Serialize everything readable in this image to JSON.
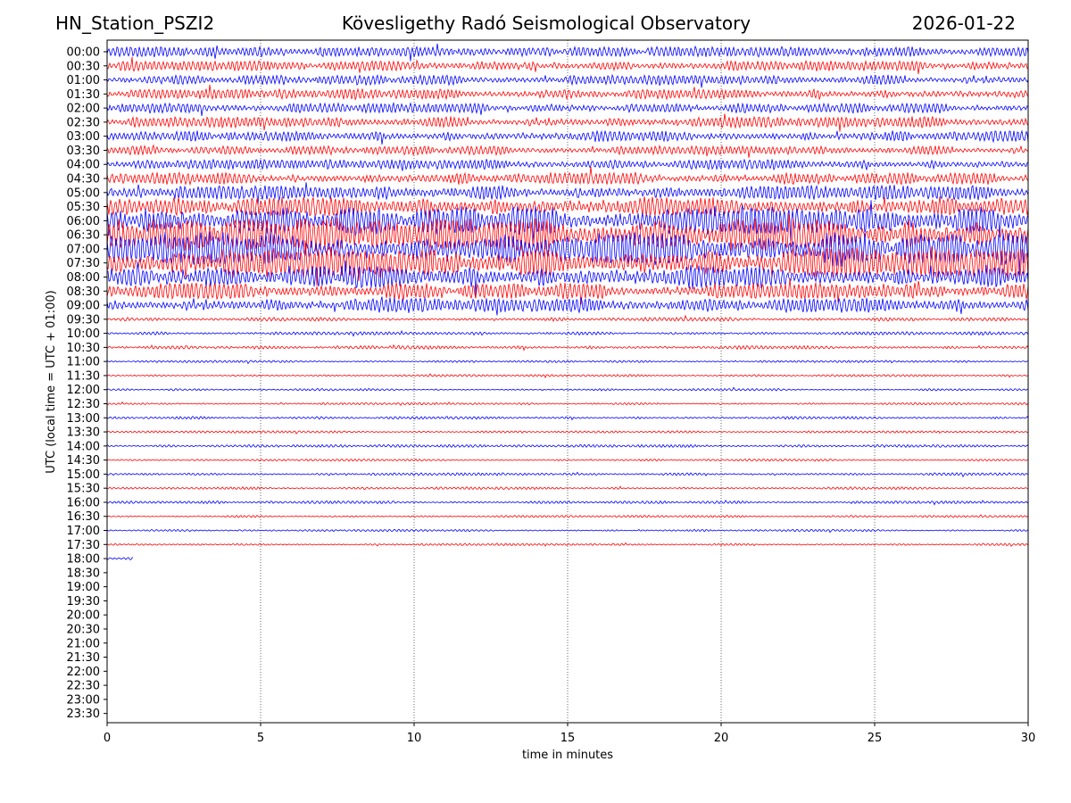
{
  "header": {
    "station": "HN_Station_PSZI2",
    "observatory": "Kövesligethy Radó Seismological Observatory",
    "date": "2026-01-22"
  },
  "chart_data": {
    "type": "line",
    "title": "Kövesligethy Radó Seismological Observatory",
    "xlabel": "time in minutes",
    "ylabel": "UTC (local time = UTC + 01:00)",
    "xlim": [
      0,
      30
    ],
    "xticks": [
      0,
      5,
      10,
      15,
      20,
      25,
      30
    ],
    "grid": "vertical dotted lines at x ticks",
    "colors": {
      "odd_rows": "#0000ff",
      "even_rows": "#ff0000"
    },
    "rows": [
      {
        "label": "00:00",
        "color": "#0000ff",
        "amplitude": 0.55,
        "duration_min": 30
      },
      {
        "label": "00:30",
        "color": "#ff0000",
        "amplitude": 0.55,
        "duration_min": 30
      },
      {
        "label": "01:00",
        "color": "#0000ff",
        "amplitude": 0.55,
        "duration_min": 30
      },
      {
        "label": "01:30",
        "color": "#ff0000",
        "amplitude": 0.55,
        "duration_min": 30
      },
      {
        "label": "02:00",
        "color": "#0000ff",
        "amplitude": 0.55,
        "duration_min": 30
      },
      {
        "label": "02:30",
        "color": "#ff0000",
        "amplitude": 0.6,
        "duration_min": 30
      },
      {
        "label": "03:00",
        "color": "#0000ff",
        "amplitude": 0.6,
        "duration_min": 30
      },
      {
        "label": "03:30",
        "color": "#ff0000",
        "amplitude": 0.5,
        "duration_min": 30
      },
      {
        "label": "04:00",
        "color": "#0000ff",
        "amplitude": 0.55,
        "duration_min": 30
      },
      {
        "label": "04:30",
        "color": "#ff0000",
        "amplitude": 0.65,
        "duration_min": 30
      },
      {
        "label": "05:00",
        "color": "#0000ff",
        "amplitude": 0.8,
        "duration_min": 30
      },
      {
        "label": "05:30",
        "color": "#ff0000",
        "amplitude": 1.1,
        "duration_min": 30
      },
      {
        "label": "06:00",
        "color": "#0000ff",
        "amplitude": 1.6,
        "duration_min": 30
      },
      {
        "label": "06:30",
        "color": "#ff0000",
        "amplitude": 1.8,
        "duration_min": 30
      },
      {
        "label": "07:00",
        "color": "#0000ff",
        "amplitude": 1.8,
        "duration_min": 30
      },
      {
        "label": "07:30",
        "color": "#ff0000",
        "amplitude": 1.7,
        "duration_min": 30
      },
      {
        "label": "08:00",
        "color": "#0000ff",
        "amplitude": 1.3,
        "duration_min": 30
      },
      {
        "label": "08:30",
        "color": "#ff0000",
        "amplitude": 0.9,
        "duration_min": 30
      },
      {
        "label": "09:00",
        "color": "#0000ff",
        "amplitude": 0.8,
        "duration_min": 30
      },
      {
        "label": "09:30",
        "color": "#ff0000",
        "amplitude": 0.2,
        "duration_min": 30
      },
      {
        "label": "10:00",
        "color": "#0000ff",
        "amplitude": 0.18,
        "duration_min": 30
      },
      {
        "label": "10:30",
        "color": "#ff0000",
        "amplitude": 0.2,
        "duration_min": 30
      },
      {
        "label": "11:00",
        "color": "#0000ff",
        "amplitude": 0.12,
        "duration_min": 30
      },
      {
        "label": "11:30",
        "color": "#ff0000",
        "amplitude": 0.12,
        "duration_min": 30
      },
      {
        "label": "12:00",
        "color": "#0000ff",
        "amplitude": 0.12,
        "duration_min": 30
      },
      {
        "label": "12:30",
        "color": "#ff0000",
        "amplitude": 0.12,
        "duration_min": 30
      },
      {
        "label": "13:00",
        "color": "#0000ff",
        "amplitude": 0.15,
        "duration_min": 30
      },
      {
        "label": "13:30",
        "color": "#ff0000",
        "amplitude": 0.12,
        "duration_min": 30
      },
      {
        "label": "14:00",
        "color": "#0000ff",
        "amplitude": 0.15,
        "duration_min": 30
      },
      {
        "label": "14:30",
        "color": "#ff0000",
        "amplitude": 0.12,
        "duration_min": 30
      },
      {
        "label": "15:00",
        "color": "#0000ff",
        "amplitude": 0.15,
        "duration_min": 30
      },
      {
        "label": "15:30",
        "color": "#ff0000",
        "amplitude": 0.14,
        "duration_min": 30
      },
      {
        "label": "16:00",
        "color": "#0000ff",
        "amplitude": 0.15,
        "duration_min": 30
      },
      {
        "label": "16:30",
        "color": "#ff0000",
        "amplitude": 0.12,
        "duration_min": 30
      },
      {
        "label": "17:00",
        "color": "#0000ff",
        "amplitude": 0.12,
        "duration_min": 30
      },
      {
        "label": "17:30",
        "color": "#ff0000",
        "amplitude": 0.12,
        "duration_min": 30
      },
      {
        "label": "18:00",
        "color": "#0000ff",
        "amplitude": 0.15,
        "duration_min": 0.85
      },
      {
        "label": "18:30",
        "color": "#ff0000",
        "amplitude": 0,
        "duration_min": 0
      },
      {
        "label": "19:00",
        "color": "#0000ff",
        "amplitude": 0,
        "duration_min": 0
      },
      {
        "label": "19:30",
        "color": "#ff0000",
        "amplitude": 0,
        "duration_min": 0
      },
      {
        "label": "20:00",
        "color": "#0000ff",
        "amplitude": 0,
        "duration_min": 0
      },
      {
        "label": "20:30",
        "color": "#ff0000",
        "amplitude": 0,
        "duration_min": 0
      },
      {
        "label": "21:00",
        "color": "#0000ff",
        "amplitude": 0,
        "duration_min": 0
      },
      {
        "label": "21:30",
        "color": "#ff0000",
        "amplitude": 0,
        "duration_min": 0
      },
      {
        "label": "22:00",
        "color": "#0000ff",
        "amplitude": 0,
        "duration_min": 0
      },
      {
        "label": "22:30",
        "color": "#ff0000",
        "amplitude": 0,
        "duration_min": 0
      },
      {
        "label": "23:00",
        "color": "#0000ff",
        "amplitude": 0,
        "duration_min": 0
      },
      {
        "label": "23:30",
        "color": "#ff0000",
        "amplitude": 0,
        "duration_min": 0
      }
    ]
  }
}
